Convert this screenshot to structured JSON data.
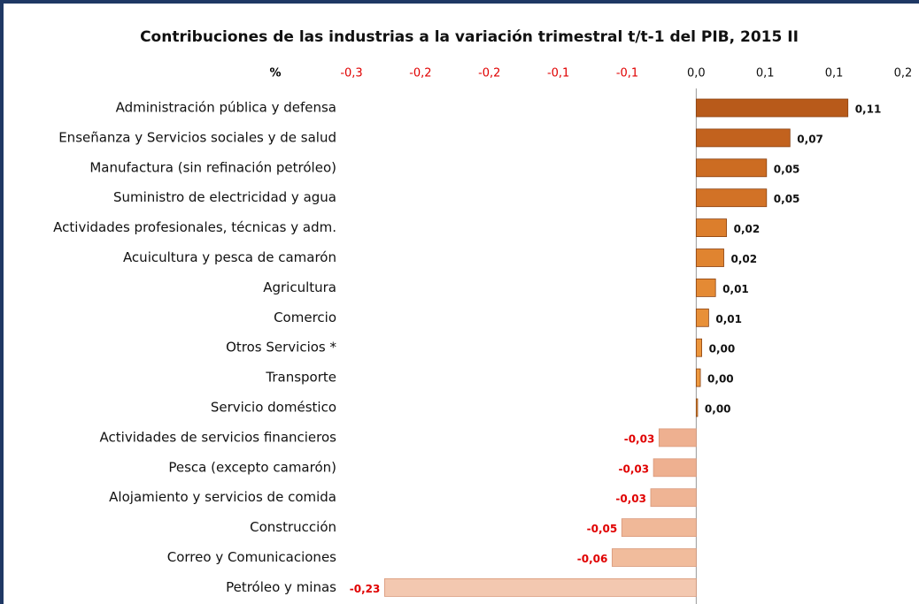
{
  "chart_data": {
    "type": "bar",
    "orientation": "horizontal",
    "title": "Contribuciones de las industrias a la variación trimestral t/t-1 del PIB, 2015 II",
    "xlabel": "%",
    "categories": [
      "Administración pública y defensa",
      "Enseñanza  y Servicios sociales y de salud",
      "Manufactura (sin refinación petróleo)",
      "Suministro de electricidad y agua",
      "Actividades profesionales, técnicas y adm.",
      "Acuicultura y pesca de camarón",
      "Agricultura",
      "Comercio",
      "Otros Servicios *",
      "Transporte",
      "Servicio doméstico",
      "Actividades de servicios financieros",
      "Pesca (excepto camarón)",
      "Alojamiento y servicios de comida",
      "Construcción",
      "Correo y Comunicaciones",
      "Petróleo y minas"
    ],
    "values": [
      0.11,
      0.068,
      0.051,
      0.051,
      0.022,
      0.02,
      0.014,
      0.009,
      0.004,
      0.003,
      0.001,
      -0.027,
      -0.031,
      -0.033,
      -0.054,
      -0.061,
      -0.226
    ],
    "value_labels": [
      "0,11",
      "0,07",
      "0,05",
      "0,05",
      "0,02",
      "0,02",
      "0,01",
      "0,01",
      "0,00",
      "0,00",
      "0,00",
      "-0,03",
      "-0,03",
      "-0,03",
      "-0,05",
      "-0,06",
      "-0,23"
    ],
    "colors": [
      "#b85a1a",
      "#c2621e",
      "#cc6c22",
      "#d27226",
      "#dc7e2c",
      "#e08430",
      "#e48a34",
      "#e89038",
      "#ec963c",
      "#ee9a40",
      "#f0a044",
      "#eeb090",
      "#eeb090",
      "#efb494",
      "#f0b898",
      "#f1bc9c",
      "#f3c8b0"
    ],
    "xlim": [
      -0.25,
      0.15
    ],
    "xticks": [
      {
        "value": -0.25,
        "label": "-0,3"
      },
      {
        "value": -0.2,
        "label": "-0,2"
      },
      {
        "value": -0.15,
        "label": "-0,2"
      },
      {
        "value": -0.1,
        "label": "-0,1"
      },
      {
        "value": -0.05,
        "label": "-0,1"
      },
      {
        "value": 0,
        "label": "0,0"
      },
      {
        "value": 0.05,
        "label": "0,1"
      },
      {
        "value": 0.1,
        "label": "0,1"
      },
      {
        "value": 0.15,
        "label": "0,2"
      }
    ],
    "negative_label_color": "#e00000"
  }
}
